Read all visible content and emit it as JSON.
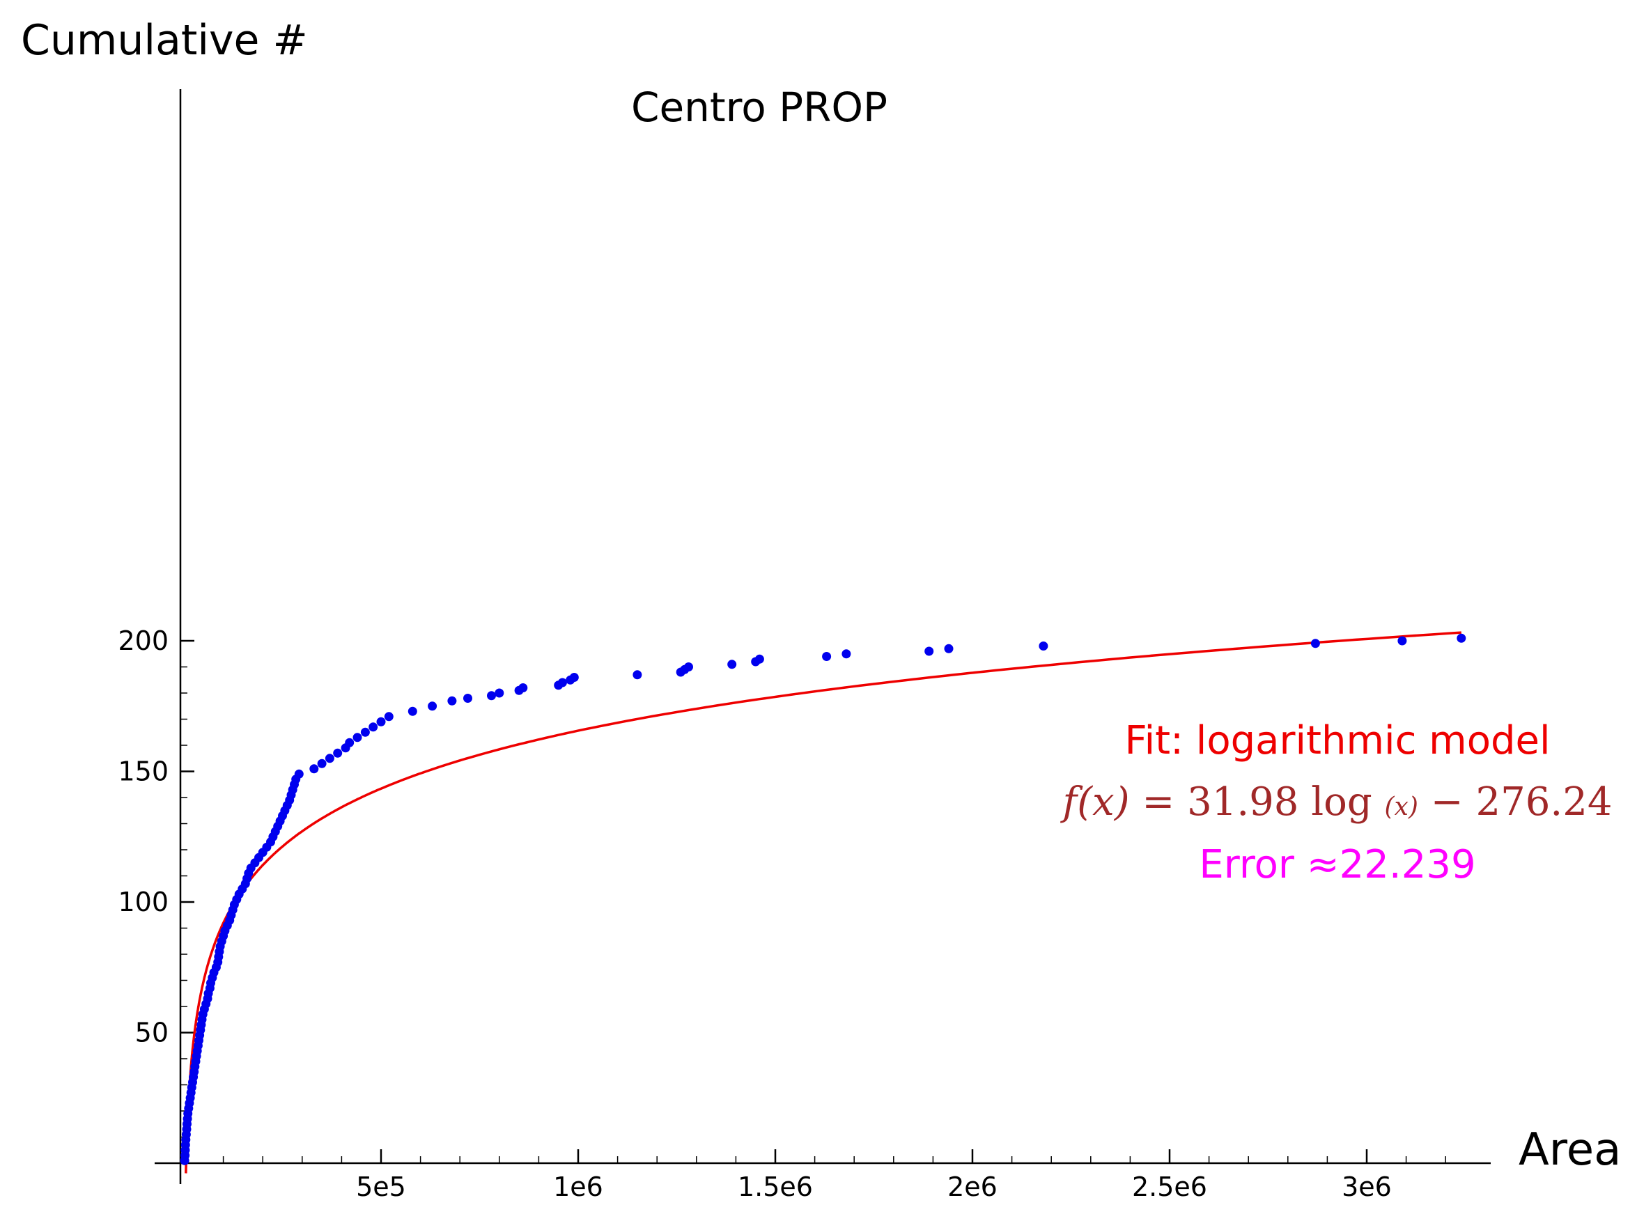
{
  "chart_data": {
    "type": "scatter",
    "title": "Centro PROP",
    "xlabel": "Area",
    "ylabel": "Cumulative #",
    "xlim": [
      -5000,
      3300000
    ],
    "ylim": [
      0,
      205
    ],
    "x_ticks": [
      {
        "value": 500000,
        "label": "5e5"
      },
      {
        "value": 1000000,
        "label": "1e6"
      },
      {
        "value": 1500000,
        "label": "1.5e6"
      },
      {
        "value": 2000000,
        "label": "2e6"
      },
      {
        "value": 2500000,
        "label": "2.5e6"
      },
      {
        "value": 3000000,
        "label": "3e6"
      }
    ],
    "y_ticks": [
      {
        "value": 50,
        "label": "50"
      },
      {
        "value": 100,
        "label": "100"
      },
      {
        "value": 150,
        "label": "150"
      },
      {
        "value": 200,
        "label": "200"
      }
    ],
    "grid": false,
    "points_color": "#0000ee",
    "fit_color": "#ee0000",
    "points": [
      [
        2000,
        1
      ],
      [
        3000,
        3
      ],
      [
        3500,
        5
      ],
      [
        4000,
        7
      ],
      [
        5000,
        9
      ],
      [
        6000,
        11
      ],
      [
        7000,
        13
      ],
      [
        8000,
        15
      ],
      [
        9000,
        17
      ],
      [
        10000,
        19
      ],
      [
        12000,
        21
      ],
      [
        14000,
        23
      ],
      [
        16000,
        25
      ],
      [
        18000,
        27
      ],
      [
        20000,
        29
      ],
      [
        22000,
        31
      ],
      [
        24000,
        33
      ],
      [
        26000,
        35
      ],
      [
        28000,
        37
      ],
      [
        30000,
        39
      ],
      [
        32000,
        41
      ],
      [
        34000,
        43
      ],
      [
        36000,
        45
      ],
      [
        38000,
        47
      ],
      [
        40000,
        49
      ],
      [
        42000,
        51
      ],
      [
        44000,
        53
      ],
      [
        46000,
        55
      ],
      [
        48000,
        57
      ],
      [
        52000,
        59
      ],
      [
        56000,
        61
      ],
      [
        60000,
        63
      ],
      [
        62000,
        65
      ],
      [
        66000,
        67
      ],
      [
        68000,
        69
      ],
      [
        72000,
        71
      ],
      [
        76000,
        73
      ],
      [
        82000,
        75
      ],
      [
        86000,
        77
      ],
      [
        88000,
        79
      ],
      [
        90000,
        81
      ],
      [
        92000,
        83
      ],
      [
        96000,
        85
      ],
      [
        100000,
        87
      ],
      [
        104000,
        89
      ],
      [
        110000,
        91
      ],
      [
        116000,
        93
      ],
      [
        120000,
        95
      ],
      [
        124000,
        97
      ],
      [
        128000,
        99
      ],
      [
        134000,
        101
      ],
      [
        140000,
        103
      ],
      [
        148000,
        105
      ],
      [
        156000,
        107
      ],
      [
        160000,
        109
      ],
      [
        164000,
        111
      ],
      [
        170000,
        113
      ],
      [
        180000,
        115
      ],
      [
        190000,
        117
      ],
      [
        200000,
        119
      ],
      [
        210000,
        121
      ],
      [
        220000,
        123
      ],
      [
        226000,
        125
      ],
      [
        232000,
        127
      ],
      [
        238000,
        129
      ],
      [
        244000,
        131
      ],
      [
        250000,
        133
      ],
      [
        256000,
        135
      ],
      [
        262000,
        137
      ],
      [
        268000,
        139
      ],
      [
        272000,
        141
      ],
      [
        276000,
        143
      ],
      [
        280000,
        145
      ],
      [
        284000,
        147
      ],
      [
        292000,
        149
      ],
      [
        330000,
        151
      ],
      [
        350000,
        153
      ],
      [
        370000,
        155
      ],
      [
        390000,
        157
      ],
      [
        410000,
        159
      ],
      [
        420000,
        161
      ],
      [
        440000,
        163
      ],
      [
        460000,
        165
      ],
      [
        480000,
        167
      ],
      [
        500000,
        169
      ],
      [
        520000,
        171
      ],
      [
        580000,
        173
      ],
      [
        630000,
        175
      ],
      [
        680000,
        177
      ],
      [
        720000,
        178
      ],
      [
        780000,
        179
      ],
      [
        800000,
        180
      ],
      [
        850000,
        181
      ],
      [
        860000,
        182
      ],
      [
        950000,
        183
      ],
      [
        960000,
        184
      ],
      [
        980000,
        185
      ],
      [
        990000,
        186
      ],
      [
        1150000,
        187
      ],
      [
        1260000,
        188
      ],
      [
        1270000,
        189
      ],
      [
        1280000,
        190
      ],
      [
        1390000,
        191
      ],
      [
        1450000,
        192
      ],
      [
        1460000,
        193
      ],
      [
        1630000,
        194
      ],
      [
        1680000,
        195
      ],
      [
        1890000,
        196
      ],
      [
        1940000,
        197
      ],
      [
        2180000,
        198
      ],
      [
        2870000,
        199
      ],
      [
        3090000,
        200
      ],
      [
        3240000,
        201
      ]
    ],
    "fit": {
      "model": "logarithmic",
      "a": 31.98,
      "b": -276.24,
      "x_range": [
        5000,
        3240000
      ]
    },
    "annotations": {
      "fit_label": "Fit: logarithmic model",
      "formula_lhs": "f(x)",
      "formula_equals": "=",
      "formula_coeff": "31.98",
      "formula_log": "log",
      "formula_arg": "(x)",
      "formula_minus": "−",
      "formula_const": "276.24",
      "error_label": "Error ≈22.239",
      "fit_label_color": "#ee0000",
      "formula_color": "#a02828",
      "error_label_color": "#ff00ff"
    }
  }
}
